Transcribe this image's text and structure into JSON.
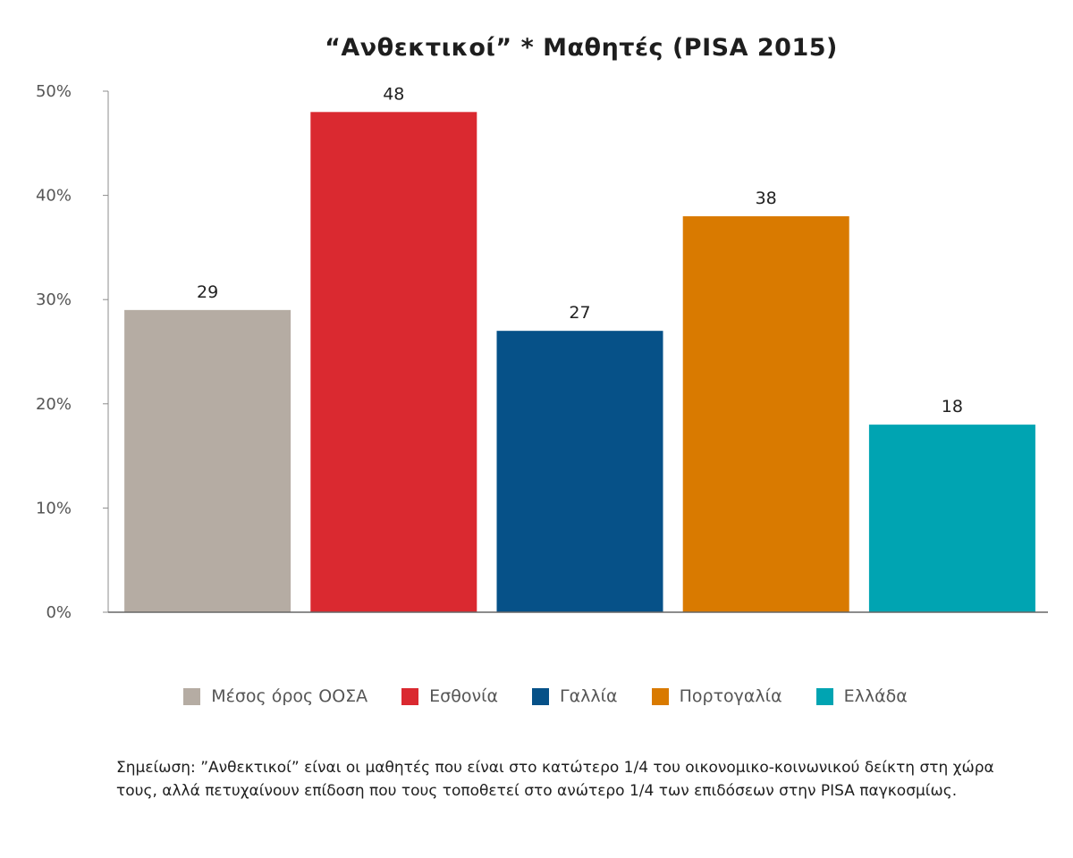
{
  "chart_data": {
    "type": "bar",
    "title": "“Ανθεκτικοί” * Μαθητές (PISA 2015)",
    "categories": [
      "Μέσος όρος ΟΟΣΑ",
      "Εσθονία",
      "Γαλλία",
      "Πορτογαλία",
      "Ελλάδα"
    ],
    "values": [
      29,
      48,
      27,
      38,
      18
    ],
    "data_labels": [
      "29",
      "48",
      "27",
      "38",
      "18"
    ],
    "colors": [
      "#b5aca3",
      "#da2930",
      "#065188",
      "#d97a00",
      "#00a4b2"
    ],
    "ylim": [
      0,
      50
    ],
    "yticks": [
      0,
      10,
      20,
      30,
      40,
      50
    ],
    "ytick_labels": [
      "0%",
      "10%",
      "20%",
      "30%",
      "40%",
      "50%"
    ],
    "grid": false,
    "legend_position": "bottom",
    "xlabel": "",
    "ylabel": ""
  },
  "footnote": "Σημείωση: ”Ανθεκτικοί” είναι οι μαθητές που είναι στο κατώτερο 1/4 του οικονομικο-κοινωνικού δείκτη στη χώρα τους, αλλά πετυχαίνουν επίδοση που τους τοποθετεί στο ανώτερο 1/4 των επιδόσεων στην PISA παγκοσμίως."
}
